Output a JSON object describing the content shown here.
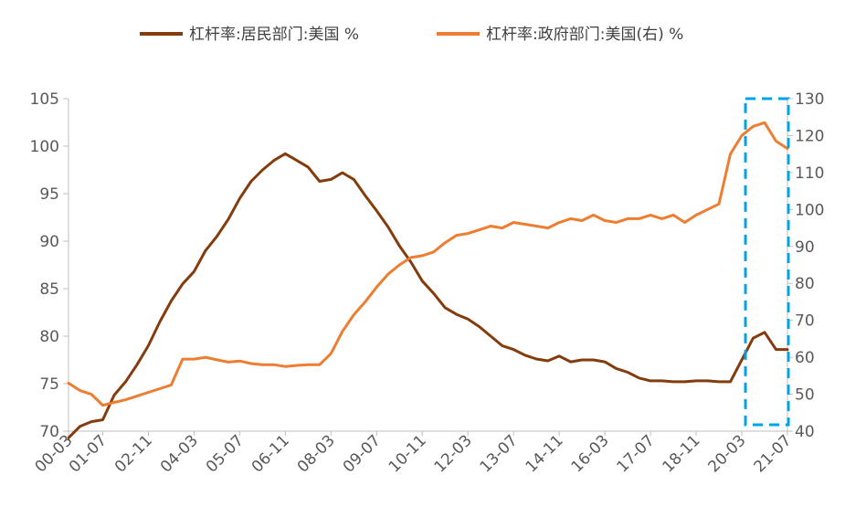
{
  "chart_data": {
    "type": "line",
    "title": "",
    "xlabel": "",
    "ylabel": "",
    "y2label": "",
    "legend_position": "top",
    "grid": false,
    "categories": [
      "00-03",
      "00-09",
      "01-03",
      "01-07",
      "01-11",
      "02-03",
      "02-07",
      "02-11",
      "03-03",
      "03-07",
      "03-11",
      "04-03",
      "04-07",
      "04-11",
      "05-03",
      "05-07",
      "05-11",
      "06-03",
      "06-07",
      "06-11",
      "07-03",
      "07-07",
      "07-11",
      "08-03",
      "08-07",
      "08-11",
      "09-03",
      "09-07",
      "09-11",
      "10-03",
      "10-07",
      "10-11",
      "11-03",
      "11-07",
      "11-11",
      "12-03",
      "12-07",
      "12-11",
      "13-03",
      "13-07",
      "13-11",
      "14-03",
      "14-07",
      "14-11",
      "15-03",
      "15-07",
      "15-11",
      "16-03",
      "16-07",
      "16-11",
      "17-03",
      "17-07",
      "17-11",
      "18-03",
      "18-07",
      "18-11",
      "19-03",
      "19-07",
      "19-11",
      "20-03",
      "20-07",
      "20-11",
      "21-03",
      "21-07"
    ],
    "x_tick_labels": [
      "00-03",
      "01-07",
      "02-11",
      "04-03",
      "05-07",
      "06-11",
      "08-03",
      "09-07",
      "10-11",
      "12-03",
      "13-07",
      "14-11",
      "16-03",
      "17-07",
      "18-11",
      "20-03",
      "21-07"
    ],
    "left_axis": {
      "min": 70,
      "max": 105,
      "ticks": [
        70,
        75,
        80,
        85,
        90,
        95,
        100,
        105
      ]
    },
    "right_axis": {
      "min": 40,
      "max": 130,
      "ticks": [
        40,
        50,
        60,
        70,
        80,
        90,
        100,
        110,
        120,
        130
      ]
    },
    "series": [
      {
        "name": "杠杆率:居民部门:美国 %",
        "axis": "left",
        "color": "#843C0C",
        "values": [
          69.3,
          70.5,
          71.0,
          71.2,
          73.8,
          75.2,
          77.0,
          79.0,
          81.5,
          83.7,
          85.5,
          86.8,
          89.0,
          90.5,
          92.3,
          94.5,
          96.3,
          97.5,
          98.5,
          99.2,
          98.5,
          97.8,
          96.3,
          96.5,
          97.2,
          96.5,
          94.8,
          93.2,
          91.5,
          89.5,
          87.8,
          85.8,
          84.5,
          83.0,
          82.3,
          81.8,
          81.0,
          80.0,
          79.0,
          78.6,
          78.0,
          77.6,
          77.4,
          77.9,
          77.3,
          77.5,
          77.5,
          77.3,
          76.6,
          76.2,
          75.6,
          75.3,
          75.3,
          75.2,
          75.2,
          75.3,
          75.3,
          75.2,
          75.2,
          77.5,
          79.8,
          80.4,
          78.6,
          78.6
        ]
      },
      {
        "name": "杠杆率:政府部门:美国(右) %",
        "axis": "right",
        "color": "#ED7D31",
        "values": [
          53.0,
          51.0,
          50.0,
          47.0,
          47.8,
          48.5,
          49.5,
          50.5,
          51.5,
          52.5,
          59.5,
          59.5,
          60.0,
          59.3,
          58.7,
          59.0,
          58.3,
          58.0,
          58.0,
          57.5,
          57.8,
          58.0,
          58.0,
          61.0,
          67.0,
          71.5,
          75.0,
          79.0,
          82.5,
          85.0,
          87.0,
          87.5,
          88.5,
          91.0,
          93.0,
          93.5,
          94.5,
          95.5,
          95.0,
          96.5,
          96.0,
          95.5,
          95.0,
          96.5,
          97.5,
          97.0,
          98.5,
          97.0,
          96.5,
          97.5,
          97.5,
          98.5,
          97.5,
          98.5,
          96.5,
          98.5,
          100.0,
          101.5,
          115.0,
          120.0,
          122.5,
          123.5,
          118.5,
          116.5
        ]
      }
    ],
    "highlight_box": {
      "x_from": "20-03",
      "x_to": "21-07",
      "color": "#00A2E8",
      "style": "dashed"
    }
  }
}
